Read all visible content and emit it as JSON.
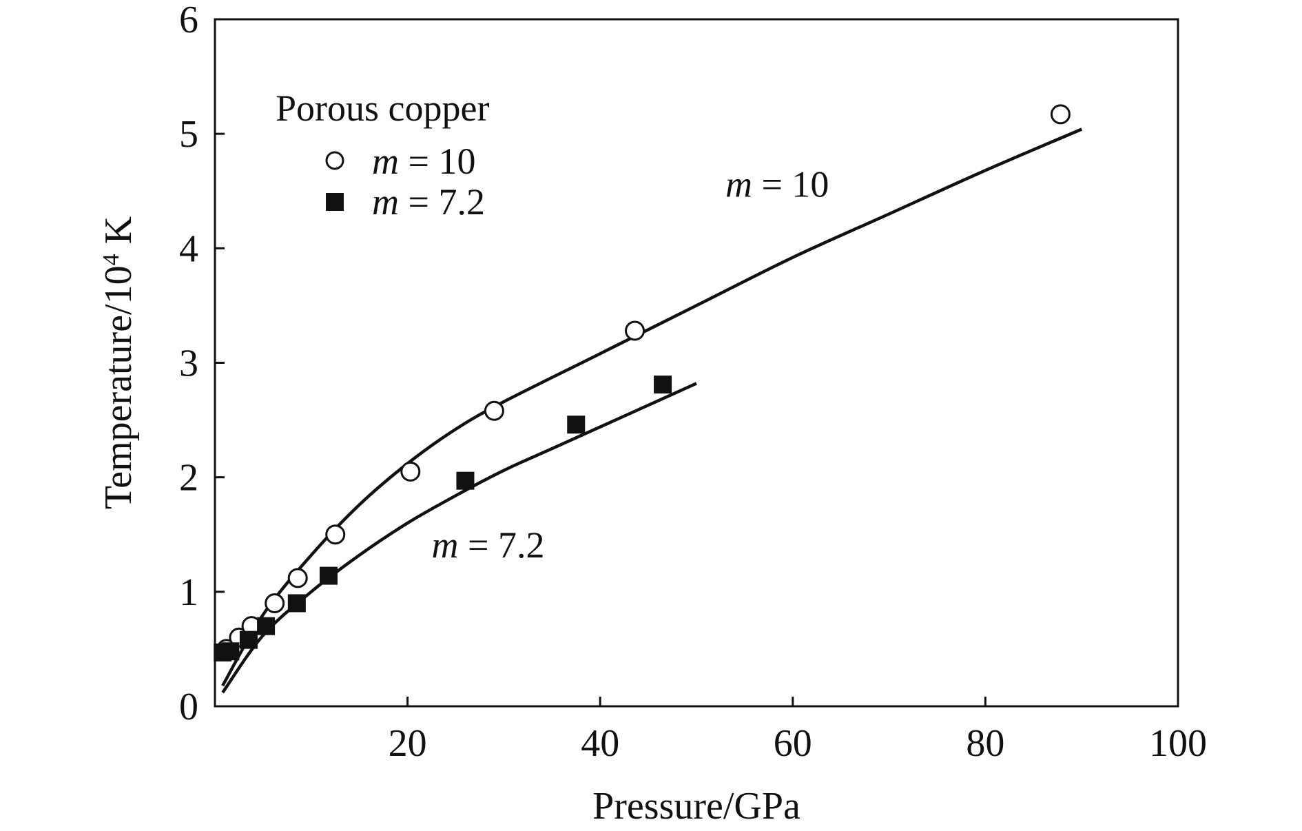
{
  "chart_data": {
    "type": "scatter",
    "xlabel": "Pressure/GPa",
    "ylabel": {
      "main": "Temperature/10",
      "sup": "4",
      "unit": " K"
    },
    "xlim": [
      0,
      100
    ],
    "ylim": [
      0,
      6
    ],
    "x_ticks": [
      20,
      40,
      60,
      80,
      100
    ],
    "y_ticks": [
      0,
      1,
      2,
      3,
      4,
      5,
      6
    ],
    "grid": false,
    "legend": {
      "title": "Porous copper",
      "placement": "top-left",
      "entries": [
        {
          "var": "m",
          "text": " = 10",
          "marker": "open-circle"
        },
        {
          "var": "m",
          "text": " = 7.2",
          "marker": "filled-square"
        }
      ]
    },
    "series": [
      {
        "name": "m = 10",
        "marker": "open-circle",
        "points": [
          {
            "x": 1.2,
            "y": 0.5
          },
          {
            "x": 2.5,
            "y": 0.6
          },
          {
            "x": 3.8,
            "y": 0.7
          },
          {
            "x": 6.2,
            "y": 0.9
          },
          {
            "x": 8.6,
            "y": 1.12
          },
          {
            "x": 12.5,
            "y": 1.5
          },
          {
            "x": 20.3,
            "y": 2.05
          },
          {
            "x": 29.0,
            "y": 2.58
          },
          {
            "x": 43.6,
            "y": 3.28
          },
          {
            "x": 87.8,
            "y": 5.17
          }
        ],
        "fit_curve": [
          [
            0.8,
            0.18
          ],
          [
            5,
            0.8
          ],
          [
            10,
            1.32
          ],
          [
            15,
            1.76
          ],
          [
            20,
            2.12
          ],
          [
            25,
            2.42
          ],
          [
            30,
            2.66
          ],
          [
            40,
            3.08
          ],
          [
            50,
            3.5
          ],
          [
            60,
            3.92
          ],
          [
            70,
            4.3
          ],
          [
            80,
            4.68
          ],
          [
            90,
            5.04
          ]
        ]
      },
      {
        "name": "m = 7.2",
        "marker": "filled-square",
        "points": [
          {
            "x": 0.8,
            "y": 0.47
          },
          {
            "x": 1.6,
            "y": 0.48
          },
          {
            "x": 3.5,
            "y": 0.58
          },
          {
            "x": 5.3,
            "y": 0.7
          },
          {
            "x": 8.5,
            "y": 0.9
          },
          {
            "x": 11.8,
            "y": 1.14
          },
          {
            "x": 26.0,
            "y": 1.97
          },
          {
            "x": 37.5,
            "y": 2.46
          },
          {
            "x": 46.5,
            "y": 2.81
          }
        ],
        "fit_curve": [
          [
            0.8,
            0.12
          ],
          [
            5,
            0.62
          ],
          [
            10,
            1.0
          ],
          [
            15,
            1.32
          ],
          [
            20,
            1.6
          ],
          [
            25,
            1.84
          ],
          [
            30,
            2.06
          ],
          [
            35,
            2.25
          ],
          [
            40,
            2.44
          ],
          [
            45,
            2.63
          ],
          [
            50,
            2.82
          ]
        ]
      }
    ],
    "annotations": [
      {
        "var": "m",
        "text": " = 10",
        "x": 53,
        "y": 4.45
      },
      {
        "var": "m",
        "text": " = 7.2",
        "x": 22.5,
        "y": 1.3
      }
    ]
  }
}
